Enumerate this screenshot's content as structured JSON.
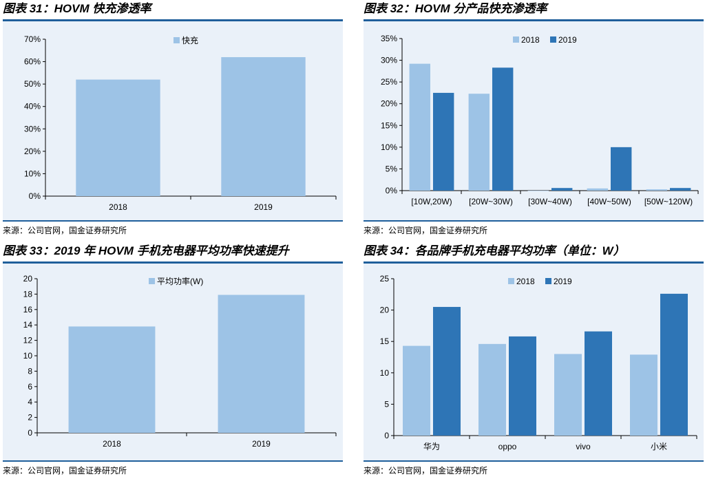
{
  "source_text": "来源：公司官网，国金证券研究所",
  "colors": {
    "light": "#9dc3e6",
    "dark": "#2e75b6",
    "rule": "#1f5f9b"
  },
  "panels": [
    {
      "title": "图表 31：HOVM 快充渗透率",
      "chart_data": {
        "type": "bar",
        "categories": [
          "2018",
          "2019"
        ],
        "series": [
          {
            "name": "快充",
            "values": [
              52,
              62
            ]
          }
        ],
        "ylim": [
          0,
          70
        ],
        "yticks": [
          0,
          10,
          20,
          30,
          40,
          50,
          60,
          70
        ],
        "ytick_labels": [
          "0%",
          "10%",
          "20%",
          "30%",
          "40%",
          "50%",
          "60%",
          "70%"
        ],
        "legend": "top-center"
      }
    },
    {
      "title": "图表 32：HOVM 分产品快充渗透率",
      "chart_data": {
        "type": "bar",
        "categories": [
          "[10W,20W)",
          "[20W~30W)",
          "[30W~40W)",
          "[40W~50W)",
          "[50W~120W)"
        ],
        "series": [
          {
            "name": "2018",
            "values": [
              29.2,
              22.3,
              0,
              0.5,
              0.3
            ]
          },
          {
            "name": "2019",
            "values": [
              22.5,
              28.3,
              0.6,
              10,
              0.6
            ]
          }
        ],
        "ylim": [
          0,
          35
        ],
        "yticks": [
          0,
          5,
          10,
          15,
          20,
          25,
          30,
          35
        ],
        "ytick_labels": [
          "0%",
          "5%",
          "10%",
          "15%",
          "20%",
          "25%",
          "30%",
          "35%"
        ],
        "legend": "top-center"
      }
    },
    {
      "title": "图表 33：2019 年 HOVM 手机充电器平均功率快速提升",
      "chart_data": {
        "type": "bar",
        "categories": [
          "2018",
          "2019"
        ],
        "series": [
          {
            "name": "平均功率(W)",
            "values": [
              13.8,
              17.9
            ]
          }
        ],
        "ylim": [
          0,
          20
        ],
        "yticks": [
          0,
          2,
          4,
          6,
          8,
          10,
          12,
          14,
          16,
          18,
          20
        ],
        "ytick_labels": [
          "0",
          "2",
          "4",
          "6",
          "8",
          "10",
          "12",
          "14",
          "16",
          "18",
          "20"
        ],
        "legend": "top-center"
      }
    },
    {
      "title": "图表 34：各品牌手机充电器平均功率（单位：W）",
      "chart_data": {
        "type": "bar",
        "categories": [
          "华为",
          "oppo",
          "vivo",
          "小米"
        ],
        "series": [
          {
            "name": "2018",
            "values": [
              14.3,
              14.6,
              13.0,
              12.9
            ]
          },
          {
            "name": "2019",
            "values": [
              20.5,
              15.8,
              16.6,
              22.6
            ]
          }
        ],
        "ylim": [
          0,
          25
        ],
        "yticks": [
          0,
          5,
          10,
          15,
          20,
          25
        ],
        "ytick_labels": [
          "0",
          "5",
          "10",
          "15",
          "20",
          "25"
        ],
        "legend": "top-center"
      }
    }
  ]
}
